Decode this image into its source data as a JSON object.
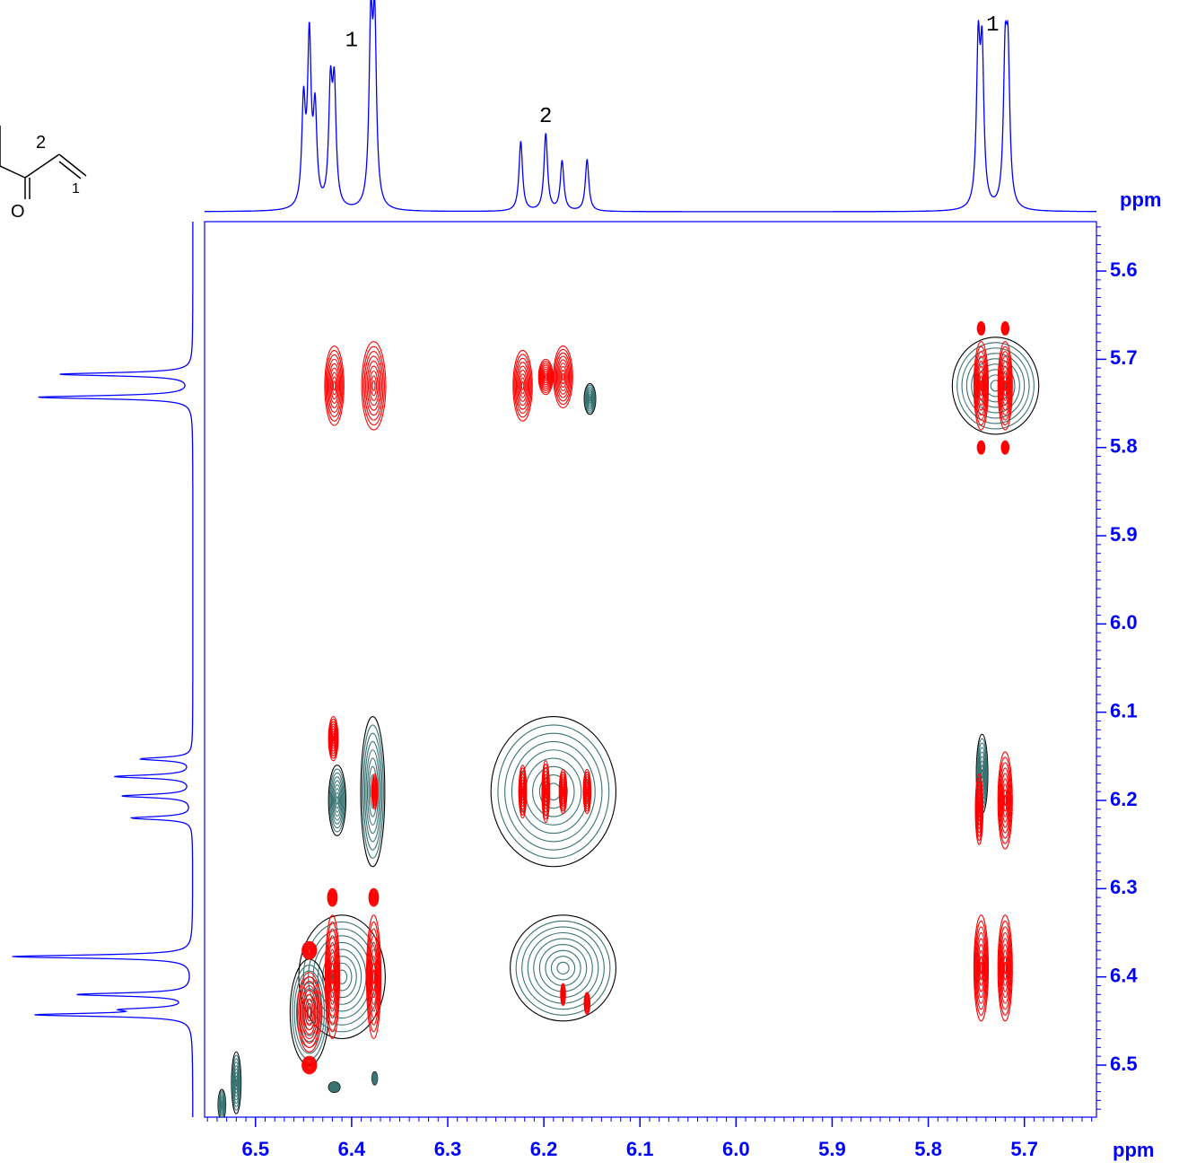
{
  "chart_data": {
    "type": "contour",
    "xlabel": "ppm",
    "ylabel": "ppm",
    "xlim": [
      6.553,
      5.625
    ],
    "ylim": [
      5.544,
      6.559
    ],
    "xticks": [
      6.5,
      6.4,
      6.3,
      6.2,
      6.1,
      {
        "value": 6,
        "label": "6.0"
      },
      5.9,
      5.8,
      5.7
    ],
    "yticks": [
      5.6,
      5.7,
      5.8,
      5.9,
      {
        "value": 6,
        "label": "6.0"
      },
      6.1,
      6.2,
      6.3,
      6.4,
      6.5
    ],
    "minor_step": 0.01,
    "axis_color": "#0000ff",
    "trace_color": "#0000ff",
    "top_trace": {
      "x": [
        6.45,
        6.444,
        6.438,
        6.422,
        6.418,
        6.38,
        6.376,
        6.224,
        6.198,
        6.181,
        6.155,
        5.748,
        5.744,
        5.72,
        5.717
      ],
      "values": [
        0.55,
        0.9,
        0.5,
        0.62,
        0.62,
        0.95,
        0.95,
        0.38,
        0.42,
        0.27,
        0.28,
        0.84,
        0.8,
        0.74,
        0.74
      ]
    },
    "side_trace": {
      "y": [
        5.717,
        5.743,
        6.153,
        6.173,
        6.195,
        6.22,
        6.377,
        6.42,
        6.437,
        6.443
      ],
      "values": [
        0.72,
        0.84,
        0.28,
        0.42,
        0.38,
        0.33,
        0.98,
        0.62,
        0.3,
        0.82
      ]
    },
    "annotations": [
      {
        "text": "1",
        "x": 6.4
      },
      {
        "text": "2",
        "x": 6.198
      },
      {
        "text": "1",
        "x": 5.733
      }
    ],
    "molecule": {
      "labels": [
        "2",
        "1",
        "O"
      ]
    },
    "series": [
      {
        "color": "#3b7373",
        "edge_color": "#000000",
        "x": [
          6.41,
          6.444,
          6.415,
          6.378,
          6.19,
          6.18,
          5.73,
          5.744,
          6.152,
          6.535,
          6.52,
          6.418,
          6.376
        ],
        "y": [
          6.4,
          6.44,
          6.2,
          6.19,
          6.19,
          6.39,
          5.73,
          6.17,
          5.745,
          6.545,
          6.52,
          6.525,
          6.515
        ],
        "dx": [
          0.09,
          0.04,
          0.018,
          0.025,
          0.13,
          0.11,
          0.09,
          0.012,
          0.012,
          0.008,
          0.01,
          0.012,
          0.006
        ],
        "dy": [
          0.14,
          0.12,
          0.08,
          0.17,
          0.17,
          0.12,
          0.11,
          0.09,
          0.035,
          0.035,
          0.07,
          0.012,
          0.015
        ]
      },
      {
        "color": "#ff0000",
        "x": [
          6.418,
          6.377,
          6.222,
          6.198,
          6.18,
          5.745,
          5.72,
          5.745,
          5.72,
          5.745,
          5.72,
          6.419,
          6.376,
          6.222,
          6.198,
          6.18,
          6.155,
          5.747,
          5.72,
          6.42,
          6.377,
          6.444,
          6.444,
          6.444,
          5.745,
          5.72,
          6.42,
          6.377,
          6.18,
          6.155
        ],
        "y": [
          5.73,
          5.73,
          5.73,
          5.72,
          5.72,
          5.73,
          5.73,
          5.665,
          5.665,
          5.8,
          5.8,
          6.13,
          6.19,
          6.19,
          6.19,
          6.19,
          6.19,
          6.21,
          6.2,
          6.4,
          6.4,
          6.44,
          6.37,
          6.5,
          6.39,
          6.39,
          6.31,
          6.31,
          6.42,
          6.43
        ],
        "dx": [
          0.02,
          0.025,
          0.02,
          0.015,
          0.02,
          0.015,
          0.015,
          0.008,
          0.008,
          0.008,
          0.008,
          0.01,
          0.006,
          0.008,
          0.008,
          0.008,
          0.008,
          0.008,
          0.015,
          0.015,
          0.015,
          0.025,
          0.015,
          0.015,
          0.015,
          0.015,
          0.01,
          0.01,
          0.005,
          0.006
        ],
        "dy": [
          0.09,
          0.1,
          0.08,
          0.04,
          0.07,
          0.1,
          0.1,
          0.015,
          0.015,
          0.015,
          0.015,
          0.05,
          0.04,
          0.06,
          0.07,
          0.05,
          0.05,
          0.08,
          0.11,
          0.14,
          0.14,
          0.09,
          0.02,
          0.02,
          0.12,
          0.12,
          0.02,
          0.02,
          0.025,
          0.025
        ]
      }
    ]
  }
}
